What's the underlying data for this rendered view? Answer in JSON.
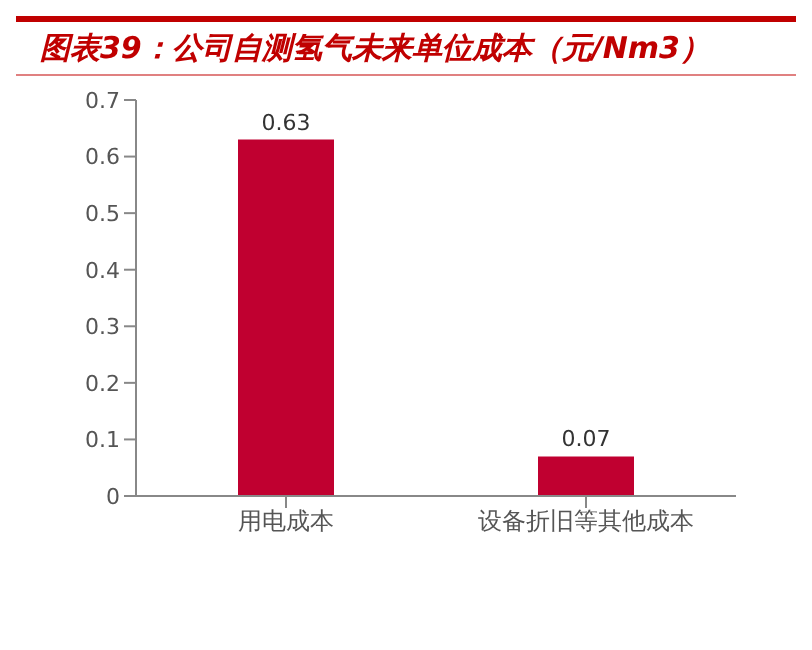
{
  "chart_data": {
    "type": "bar",
    "title": "图表39：公司自测氢气未来单位成本（元/Nm3）",
    "categories": [
      "用电成本",
      "设备折旧等其他成本"
    ],
    "values": [
      0.63,
      0.07
    ],
    "color": "#c00030",
    "ylim": [
      0,
      0.7
    ],
    "yticks": [
      0,
      0.1,
      0.2,
      0.3,
      0.4,
      0.5,
      0.6,
      0.7
    ],
    "data_labels": true
  }
}
